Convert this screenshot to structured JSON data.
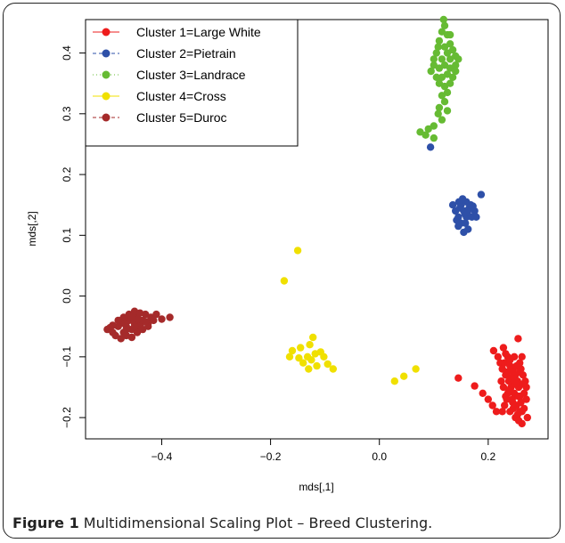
{
  "caption": {
    "label": "Figure 1",
    "text": " Multidimensional Scaling Plot – Breed Clustering."
  },
  "chart_data": {
    "type": "scatter",
    "xlabel": "mds[,1]",
    "ylabel": "mds[,2]",
    "xlim": [
      -0.54,
      0.31
    ],
    "ylim": [
      -0.235,
      0.455
    ],
    "xticks": [
      -0.4,
      -0.2,
      0.0,
      0.2
    ],
    "xtick_labels": [
      "−0.4",
      "−0.2",
      "0.0",
      "0.2"
    ],
    "yticks": [
      -0.2,
      -0.1,
      0.0,
      0.1,
      0.2,
      0.3,
      0.4
    ],
    "ytick_labels": [
      "−0.2",
      "−0.1",
      "0.0",
      "0.1",
      "0.2",
      "0.3",
      "0.4"
    ],
    "legend_position": "top-left",
    "series": [
      {
        "name": "Cluster 1=Large White",
        "color": "#ee1c1c",
        "line_style": "solid",
        "points": [
          [
            0.255,
            -0.07
          ],
          [
            0.262,
            -0.1
          ],
          [
            0.258,
            -0.165
          ],
          [
            0.258,
            -0.19
          ],
          [
            0.21,
            -0.09
          ],
          [
            0.218,
            -0.1
          ],
          [
            0.222,
            -0.11
          ],
          [
            0.226,
            -0.12
          ],
          [
            0.23,
            -0.11
          ],
          [
            0.236,
            -0.1
          ],
          [
            0.232,
            -0.13
          ],
          [
            0.238,
            -0.14
          ],
          [
            0.242,
            -0.15
          ],
          [
            0.236,
            -0.16
          ],
          [
            0.246,
            -0.12
          ],
          [
            0.25,
            -0.13
          ],
          [
            0.254,
            -0.14
          ],
          [
            0.248,
            -0.16
          ],
          [
            0.244,
            -0.17
          ],
          [
            0.252,
            -0.18
          ],
          [
            0.256,
            -0.15
          ],
          [
            0.26,
            -0.12
          ],
          [
            0.264,
            -0.13
          ],
          [
            0.266,
            -0.16
          ],
          [
            0.27,
            -0.17
          ],
          [
            0.262,
            -0.19
          ],
          [
            0.25,
            -0.2
          ],
          [
            0.24,
            -0.19
          ],
          [
            0.23,
            -0.18
          ],
          [
            0.228,
            -0.15
          ],
          [
            0.224,
            -0.14
          ],
          [
            0.234,
            -0.17
          ],
          [
            0.226,
            -0.19
          ],
          [
            0.262,
            -0.21
          ],
          [
            0.272,
            -0.2
          ],
          [
            0.268,
            -0.14
          ],
          [
            0.258,
            -0.11
          ],
          [
            0.248,
            -0.1
          ],
          [
            0.24,
            -0.105
          ],
          [
            0.232,
            -0.095
          ],
          [
            0.228,
            -0.085
          ],
          [
            0.245,
            -0.125
          ],
          [
            0.25,
            -0.145
          ],
          [
            0.255,
            -0.165
          ],
          [
            0.26,
            -0.175
          ],
          [
            0.242,
            -0.135
          ],
          [
            0.238,
            -0.155
          ],
          [
            0.246,
            -0.185
          ],
          [
            0.254,
            -0.195
          ],
          [
            0.266,
            -0.185
          ],
          [
            0.27,
            -0.15
          ],
          [
            0.264,
            -0.145
          ],
          [
            0.235,
            -0.125
          ],
          [
            0.24,
            -0.115
          ],
          [
            0.252,
            -0.115
          ],
          [
            0.258,
            -0.125
          ],
          [
            0.256,
            -0.205
          ],
          [
            0.245,
            -0.175
          ],
          [
            0.232,
            -0.165
          ],
          [
            0.248,
            -0.14
          ],
          [
            0.145,
            -0.135
          ],
          [
            0.175,
            -0.148
          ],
          [
            0.19,
            -0.16
          ],
          [
            0.2,
            -0.17
          ],
          [
            0.215,
            -0.19
          ],
          [
            0.208,
            -0.18
          ]
        ]
      },
      {
        "name": "Cluster 2=Pietrain",
        "color": "#2e50a8",
        "line_style": "dashed",
        "points": [
          [
            0.094,
            0.245
          ],
          [
            0.135,
            0.15
          ],
          [
            0.14,
            0.14
          ],
          [
            0.145,
            0.13
          ],
          [
            0.15,
            0.15
          ],
          [
            0.155,
            0.14
          ],
          [
            0.16,
            0.13
          ],
          [
            0.15,
            0.12
          ],
          [
            0.145,
            0.115
          ],
          [
            0.158,
            0.12
          ],
          [
            0.165,
            0.145
          ],
          [
            0.16,
            0.155
          ],
          [
            0.153,
            0.16
          ],
          [
            0.146,
            0.155
          ],
          [
            0.17,
            0.13
          ],
          [
            0.175,
            0.14
          ],
          [
            0.142,
            0.125
          ],
          [
            0.163,
            0.11
          ],
          [
            0.155,
            0.105
          ],
          [
            0.148,
            0.145
          ],
          [
            0.168,
            0.15
          ],
          [
            0.157,
            0.135
          ],
          [
            0.162,
            0.138
          ],
          [
            0.172,
            0.148
          ],
          [
            0.187,
            0.167
          ],
          [
            0.178,
            0.13
          ]
        ]
      },
      {
        "name": "Cluster 3=Landrace",
        "color": "#66bb33",
        "line_style": "dotted",
        "points": [
          [
            0.12,
            0.445
          ],
          [
            0.115,
            0.435
          ],
          [
            0.125,
            0.43
          ],
          [
            0.11,
            0.42
          ],
          [
            0.13,
            0.415
          ],
          [
            0.12,
            0.41
          ],
          [
            0.105,
            0.4
          ],
          [
            0.125,
            0.4
          ],
          [
            0.135,
            0.405
          ],
          [
            0.14,
            0.395
          ],
          [
            0.13,
            0.39
          ],
          [
            0.115,
            0.39
          ],
          [
            0.1,
            0.38
          ],
          [
            0.11,
            0.375
          ],
          [
            0.12,
            0.38
          ],
          [
            0.13,
            0.375
          ],
          [
            0.14,
            0.38
          ],
          [
            0.145,
            0.39
          ],
          [
            0.125,
            0.365
          ],
          [
            0.115,
            0.36
          ],
          [
            0.105,
            0.36
          ],
          [
            0.095,
            0.37
          ],
          [
            0.11,
            0.35
          ],
          [
            0.12,
            0.345
          ],
          [
            0.13,
            0.35
          ],
          [
            0.125,
            0.335
          ],
          [
            0.115,
            0.33
          ],
          [
            0.12,
            0.32
          ],
          [
            0.11,
            0.31
          ],
          [
            0.125,
            0.305
          ],
          [
            0.115,
            0.29
          ],
          [
            0.1,
            0.28
          ],
          [
            0.09,
            0.275
          ],
          [
            0.075,
            0.27
          ],
          [
            0.085,
            0.265
          ],
          [
            0.1,
            0.26
          ],
          [
            0.108,
            0.3
          ],
          [
            0.135,
            0.36
          ],
          [
            0.14,
            0.37
          ],
          [
            0.1,
            0.39
          ],
          [
            0.108,
            0.41
          ],
          [
            0.13,
            0.43
          ],
          [
            0.118,
            0.455
          ]
        ]
      },
      {
        "name": "Cluster 4=Cross",
        "color": "#f0e000",
        "line_style": "solid",
        "points": [
          [
            -0.15,
            0.075
          ],
          [
            -0.175,
            0.025
          ],
          [
            -0.145,
            -0.085
          ],
          [
            -0.128,
            -0.08
          ],
          [
            -0.122,
            -0.068
          ],
          [
            -0.132,
            -0.1
          ],
          [
            -0.14,
            -0.11
          ],
          [
            -0.125,
            -0.105
          ],
          [
            -0.118,
            -0.095
          ],
          [
            -0.115,
            -0.115
          ],
          [
            -0.108,
            -0.092
          ],
          [
            -0.102,
            -0.1
          ],
          [
            -0.095,
            -0.112
          ],
          [
            -0.085,
            -0.12
          ],
          [
            -0.16,
            -0.09
          ],
          [
            -0.165,
            -0.1
          ],
          [
            -0.148,
            -0.102
          ],
          [
            -0.13,
            -0.12
          ],
          [
            0.028,
            -0.14
          ],
          [
            0.045,
            -0.132
          ],
          [
            0.067,
            -0.12
          ]
        ]
      },
      {
        "name": "Cluster 5=Duroc",
        "color": "#a52a2a",
        "line_style": "dashed",
        "points": [
          [
            -0.5,
            -0.055
          ],
          [
            -0.49,
            -0.06
          ],
          [
            -0.48,
            -0.05
          ],
          [
            -0.475,
            -0.045
          ],
          [
            -0.47,
            -0.06
          ],
          [
            -0.465,
            -0.05
          ],
          [
            -0.46,
            -0.04
          ],
          [
            -0.455,
            -0.055
          ],
          [
            -0.45,
            -0.045
          ],
          [
            -0.445,
            -0.035
          ],
          [
            -0.44,
            -0.05
          ],
          [
            -0.435,
            -0.04
          ],
          [
            -0.43,
            -0.03
          ],
          [
            -0.425,
            -0.045
          ],
          [
            -0.42,
            -0.035
          ],
          [
            -0.415,
            -0.04
          ],
          [
            -0.41,
            -0.03
          ],
          [
            -0.46,
            -0.03
          ],
          [
            -0.45,
            -0.025
          ],
          [
            -0.47,
            -0.035
          ],
          [
            -0.48,
            -0.04
          ],
          [
            -0.49,
            -0.048
          ],
          [
            -0.485,
            -0.065
          ],
          [
            -0.475,
            -0.07
          ],
          [
            -0.465,
            -0.065
          ],
          [
            -0.455,
            -0.068
          ],
          [
            -0.445,
            -0.06
          ],
          [
            -0.435,
            -0.055
          ],
          [
            -0.425,
            -0.05
          ],
          [
            -0.44,
            -0.028
          ],
          [
            -0.455,
            -0.035
          ],
          [
            -0.468,
            -0.045
          ],
          [
            -0.438,
            -0.045
          ],
          [
            -0.4,
            -0.038
          ],
          [
            -0.385,
            -0.035
          ],
          [
            -0.495,
            -0.052
          ],
          [
            -0.465,
            -0.055
          ],
          [
            -0.45,
            -0.05
          ],
          [
            -0.43,
            -0.042
          ],
          [
            -0.443,
            -0.038
          ]
        ]
      }
    ]
  }
}
